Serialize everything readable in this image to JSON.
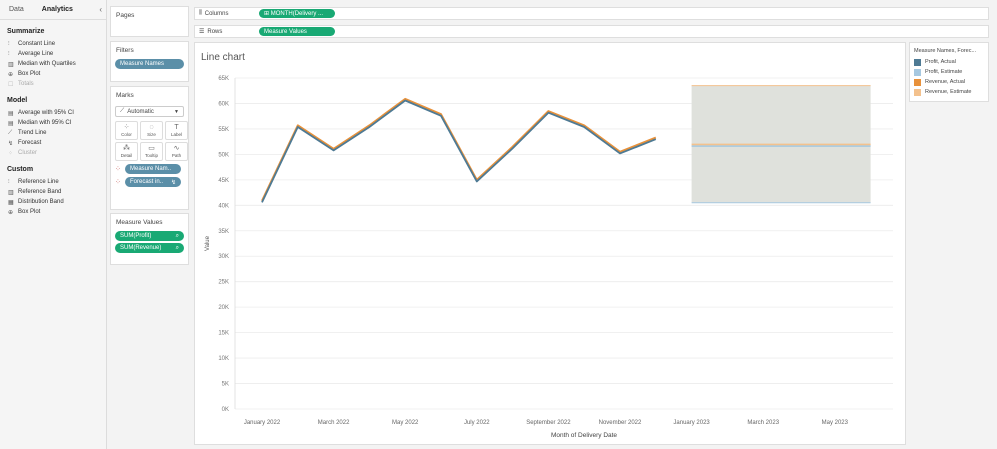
{
  "left_pane": {
    "tabs": [
      "Data",
      "Analytics"
    ],
    "active_tab": "Analytics",
    "collapse_glyph": "‹",
    "sections": [
      {
        "title": "Summarize",
        "items": [
          {
            "label": "Constant Line",
            "icon": "constant-line-icon",
            "glyph": "⫶",
            "enabled": true
          },
          {
            "label": "Average Line",
            "icon": "average-line-icon",
            "glyph": "⫶",
            "enabled": true
          },
          {
            "label": "Median with Quartiles",
            "icon": "median-quartiles-icon",
            "glyph": "▥",
            "enabled": true
          },
          {
            "label": "Box Plot",
            "icon": "box-plot-icon",
            "glyph": "⊕",
            "enabled": true
          },
          {
            "label": "Totals",
            "icon": "totals-icon",
            "glyph": "☐",
            "enabled": false
          }
        ]
      },
      {
        "title": "Model",
        "items": [
          {
            "label": "Average with 95% CI",
            "icon": "average-ci-icon",
            "glyph": "▤",
            "enabled": true
          },
          {
            "label": "Median with 95% CI",
            "icon": "median-ci-icon",
            "glyph": "▤",
            "enabled": true
          },
          {
            "label": "Trend Line",
            "icon": "trend-line-icon",
            "glyph": "⟋",
            "enabled": true
          },
          {
            "label": "Forecast",
            "icon": "forecast-icon",
            "glyph": "↯",
            "enabled": true
          },
          {
            "label": "Cluster",
            "icon": "cluster-icon",
            "glyph": "⁘",
            "enabled": false
          }
        ]
      },
      {
        "title": "Custom",
        "items": [
          {
            "label": "Reference Line",
            "icon": "reference-line-icon",
            "glyph": "⫶",
            "enabled": true
          },
          {
            "label": "Reference Band",
            "icon": "reference-band-icon",
            "glyph": "▥",
            "enabled": true
          },
          {
            "label": "Distribution Band",
            "icon": "distribution-band-icon",
            "glyph": "▦",
            "enabled": true
          },
          {
            "label": "Box Plot",
            "icon": "box-plot-icon",
            "glyph": "⊕",
            "enabled": true
          }
        ]
      }
    ]
  },
  "pages": {
    "title": "Pages"
  },
  "filters": {
    "title": "Filters",
    "pill": "Measure Names"
  },
  "marks": {
    "title": "Marks",
    "type": "Automatic",
    "buttons": [
      {
        "label": "Color",
        "glyph": "⁘",
        "icon": "color-icon"
      },
      {
        "label": "Size",
        "glyph": "◌",
        "icon": "size-icon"
      },
      {
        "label": "Label",
        "glyph": "T",
        "icon": "label-icon"
      },
      {
        "label": "Detail",
        "glyph": "⁂",
        "icon": "detail-icon"
      },
      {
        "label": "Tooltip",
        "glyph": "▭",
        "icon": "tooltip-icon"
      },
      {
        "label": "Path",
        "glyph": "∿",
        "icon": "path-icon"
      }
    ],
    "pills": [
      "Measure Nam..",
      "Forecast in.."
    ]
  },
  "measure_values": {
    "title": "Measure Values",
    "pills": [
      "SUM(Profit)",
      "SUM(Revenue)"
    ]
  },
  "shelves": {
    "columns": {
      "label": "Columns",
      "pill": "⊞ MONTH(Delivery ..."
    },
    "rows": {
      "label": "Rows",
      "pill": "Measure Values"
    }
  },
  "legend": {
    "title": "Measure Names, Forec...",
    "items": [
      {
        "label": "Profit, Actual",
        "color": "#4e7a94"
      },
      {
        "label": "Profit, Estimate",
        "color": "#a6c8e0"
      },
      {
        "label": "Revenue, Actual",
        "color": "#e8913a"
      },
      {
        "label": "Revenue, Estimate",
        "color": "#f3c18d"
      }
    ]
  },
  "chart_data": {
    "type": "line",
    "title": "Line chart",
    "xlabel": "Month of Delivery Date",
    "ylabel": "Value",
    "ylim": [
      0,
      65000
    ],
    "y_ticks": [
      0,
      5000,
      10000,
      15000,
      20000,
      25000,
      30000,
      35000,
      40000,
      45000,
      50000,
      55000,
      60000,
      65000
    ],
    "y_tick_labels": [
      "0K",
      "5K",
      "10K",
      "15K",
      "20K",
      "25K",
      "30K",
      "35K",
      "40K",
      "45K",
      "50K",
      "55K",
      "60K",
      "65K"
    ],
    "x_tick_labels": [
      "January 2022",
      "March 2022",
      "May 2022",
      "July 2022",
      "September 2022",
      "November 2022",
      "January 2023",
      "March 2023",
      "May 2023"
    ],
    "months": [
      "Jan 2022",
      "Feb 2022",
      "Mar 2022",
      "Apr 2022",
      "May 2022",
      "Jun 2022",
      "Jul 2022",
      "Aug 2022",
      "Sep 2022",
      "Oct 2022",
      "Nov 2022",
      "Dec 2022"
    ],
    "series": [
      {
        "name": "Profit, Actual",
        "color": "#4e7a94",
        "values": [
          40700,
          55500,
          50900,
          55500,
          60700,
          57700,
          44800,
          51300,
          58300,
          55500,
          50300,
          53100
        ]
      },
      {
        "name": "Revenue, Actual",
        "color": "#e8913a",
        "values": [
          40700,
          55500,
          50900,
          55500,
          60700,
          57700,
          44800,
          51300,
          58300,
          55500,
          50300,
          53100
        ]
      }
    ],
    "forecast": {
      "months": [
        "Jan 2023",
        "Feb 2023",
        "Mar 2023",
        "Apr 2023",
        "May 2023",
        "Jun 2023"
      ],
      "value": 51800,
      "band_low": 40500,
      "band_high": 63500,
      "band_color": "#dfe1dc"
    },
    "grid": true,
    "legend_position": "right"
  }
}
